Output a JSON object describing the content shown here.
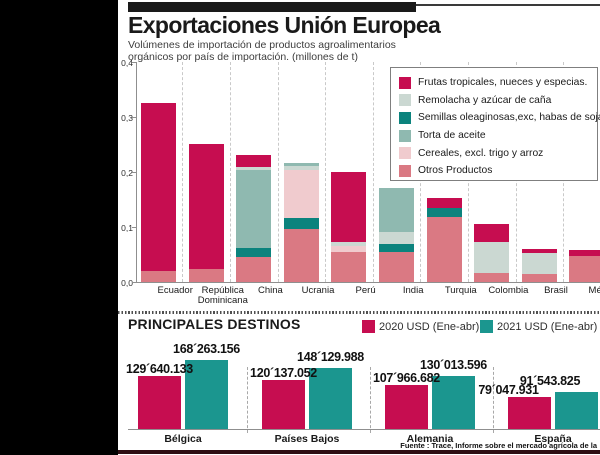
{
  "page": {
    "title": "Exportaciones Unión Europea",
    "subtitle_line1": "Volúmenes de importación de productos agroalimentarios",
    "subtitle_line2": "orgánicos por país de importación. (millones de t)",
    "source": "Fuente : Trace, Informe sobre el mercado agrícola de la"
  },
  "colors": {
    "frutas": "#C60D50",
    "remolacha": "#CBD8D2",
    "semillas": "#0B837D",
    "torta": "#8FB9B0",
    "cereales": "#F0CBCE",
    "otros": "#DA7983",
    "crimson_2020": "#C60D50",
    "teal_2021": "#1B968F",
    "black_bar": "#1A1A1A",
    "bottom_rule": "#2E0E13"
  },
  "chart_data": [
    {
      "type": "bar",
      "subtype": "stacked",
      "title": "Volúmenes de importación de productos agroalimentarios orgánicos por país de importación",
      "unit": "millones de t",
      "ylim": [
        0,
        0.4
      ],
      "grid": "vertical-dashed",
      "legend_position": "top-right",
      "yticks": [
        {
          "label": "0,4",
          "value": 0.4
        },
        {
          "label": "0,3",
          "value": 0.3
        },
        {
          "label": "0,2",
          "value": 0.2
        },
        {
          "label": "0,1",
          "value": 0.1
        },
        {
          "label": "0,0",
          "value": 0.0
        }
      ],
      "legend": [
        {
          "key": "frutas",
          "label": "Frutas tropicales, nueces y especias.",
          "color": "#C60D50"
        },
        {
          "key": "remolacha",
          "label": "Remolacha y azúcar de caña",
          "color": "#CBD8D2"
        },
        {
          "key": "semillas",
          "label": "Semillas oleaginosas,exc, habas de soja",
          "color": "#0B837D"
        },
        {
          "key": "torta",
          "label": "Torta de aceite",
          "color": "#8FB9B0"
        },
        {
          "key": "cereales",
          "label": "Cereales, excl. trigo y arroz",
          "color": "#F0CBCE"
        },
        {
          "key": "otros",
          "label": "Otros Productos",
          "color": "#DA7983"
        }
      ],
      "bars": [
        {
          "category": "Ecuador",
          "label_lines": [
            "Ecuador"
          ],
          "total": 0.325,
          "segments": [
            {
              "key": "otros",
              "value": 0.02
            },
            {
              "key": "frutas",
              "value": 0.305
            }
          ]
        },
        {
          "category": "República Dominicana",
          "label_lines": [
            "República",
            "Dominicana"
          ],
          "total": 0.25,
          "segments": [
            {
              "key": "otros",
              "value": 0.023
            },
            {
              "key": "frutas",
              "value": 0.227
            }
          ]
        },
        {
          "category": "China",
          "label_lines": [
            "China"
          ],
          "total": 0.23,
          "segments": [
            {
              "key": "otros",
              "value": 0.045
            },
            {
              "key": "semillas",
              "value": 0.016
            },
            {
              "key": "torta",
              "value": 0.142
            },
            {
              "key": "remolacha",
              "value": 0.006
            },
            {
              "key": "frutas",
              "value": 0.021
            }
          ]
        },
        {
          "category": "Ucrania",
          "label_lines": [
            "Ucrania"
          ],
          "total": 0.217,
          "segments": [
            {
              "key": "otros",
              "value": 0.097
            },
            {
              "key": "semillas",
              "value": 0.019
            },
            {
              "key": "cereales",
              "value": 0.087
            },
            {
              "key": "remolacha",
              "value": 0.008
            },
            {
              "key": "torta",
              "value": 0.006
            }
          ]
        },
        {
          "category": "Perú",
          "label_lines": [
            "Perú"
          ],
          "total": 0.2,
          "segments": [
            {
              "key": "otros",
              "value": 0.055
            },
            {
              "key": "cereales",
              "value": 0.011
            },
            {
              "key": "remolacha",
              "value": 0.006
            },
            {
              "key": "frutas",
              "value": 0.128
            }
          ]
        },
        {
          "category": "India",
          "label_lines": [
            "India"
          ],
          "total": 0.171,
          "segments": [
            {
              "key": "otros",
              "value": 0.055
            },
            {
              "key": "semillas",
              "value": 0.014
            },
            {
              "key": "remolacha",
              "value": 0.022
            },
            {
              "key": "torta",
              "value": 0.08
            }
          ]
        },
        {
          "category": "Turquia",
          "label_lines": [
            "Turquia"
          ],
          "total": 0.152,
          "segments": [
            {
              "key": "otros",
              "value": 0.119
            },
            {
              "key": "semillas",
              "value": 0.015
            },
            {
              "key": "frutas",
              "value": 0.018
            }
          ]
        },
        {
          "category": "Colombia",
          "label_lines": [
            "Colombia"
          ],
          "total": 0.105,
          "segments": [
            {
              "key": "otros",
              "value": 0.017
            },
            {
              "key": "remolacha",
              "value": 0.055
            },
            {
              "key": "frutas",
              "value": 0.033
            }
          ]
        },
        {
          "category": "Brasil",
          "label_lines": [
            "Brasil"
          ],
          "total": 0.06,
          "segments": [
            {
              "key": "otros",
              "value": 0.015
            },
            {
              "key": "remolacha",
              "value": 0.037
            },
            {
              "key": "frutas",
              "value": 0.008
            }
          ]
        },
        {
          "category": "México",
          "label_lines": [
            "México"
          ],
          "total": 0.058,
          "segments": [
            {
              "key": "otros",
              "value": 0.047
            },
            {
              "key": "frutas",
              "value": 0.011
            }
          ]
        }
      ]
    },
    {
      "type": "bar",
      "subtype": "grouped",
      "title": "PRINCIPALES DESTINOS",
      "legend": [
        {
          "key": "y2020",
          "label": "2020 USD (Ene-abr)",
          "color": "#C60D50"
        },
        {
          "key": "y2021",
          "label": "2021 USD (Ene-abr)",
          "color": "#1B968F"
        }
      ],
      "categories": [
        "Bélgica",
        "Países Bajos",
        "Alemania",
        "España"
      ],
      "series": [
        {
          "name": "2020 USD (Ene-abr)",
          "color": "#C60D50",
          "values": [
            129640133,
            120137052,
            107966682,
            79047931
          ],
          "value_labels": [
            "129´640.133",
            "120´137.052",
            "107´966.682",
            "79´047.931"
          ]
        },
        {
          "name": "2021 USD (Ene-abr)",
          "color": "#1B968F",
          "values": [
            168263156,
            148129988,
            130013596,
            91543825
          ],
          "value_labels": [
            "168´263.156",
            "148´129.988",
            "130´013.596",
            "91´543.825"
          ]
        }
      ]
    }
  ]
}
